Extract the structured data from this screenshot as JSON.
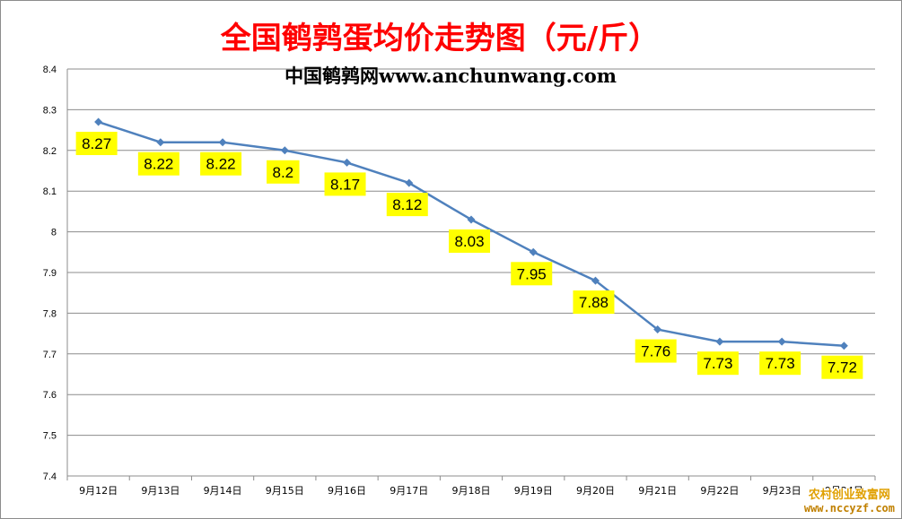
{
  "chart_data": {
    "type": "line",
    "title": "全国鹌鹑蛋均价走势图（元/斤）",
    "subtitle": "中国鹌鹑网www.anchunwang.com",
    "categories": [
      "9月12日",
      "9月13日",
      "9月14日",
      "9月15日",
      "9月16日",
      "9月17日",
      "9月18日",
      "9月19日",
      "9月20日",
      "9月21日",
      "9月22日",
      "9月23日",
      "9月24日"
    ],
    "series": [
      {
        "values": [
          8.27,
          8.22,
          8.22,
          8.2,
          8.17,
          8.12,
          8.03,
          7.95,
          7.88,
          7.76,
          7.73,
          7.73,
          7.72
        ]
      }
    ],
    "data_labels": [
      "8.27",
      "8.22",
      "8.22",
      "8.2",
      "8.17",
      "8.12",
      "8.03",
      "7.95",
      "7.88",
      "7.76",
      "7.73",
      "7.73",
      "7.72"
    ],
    "ylim": [
      7.4,
      8.4
    ],
    "yticks": [
      "7.4",
      "7.5",
      "7.6",
      "7.7",
      "7.8",
      "7.9",
      "8",
      "8.1",
      "8.2",
      "8.3",
      "8.4"
    ],
    "grid": true,
    "legend": "none",
    "colors": {
      "line": "#4f81bd",
      "label_bg": "#ffff00",
      "title": "#ff0000",
      "grid": "#8c8c8c"
    }
  },
  "watermark": {
    "line1": "农村创业致富网",
    "line2": "www.nccyzf.com"
  }
}
